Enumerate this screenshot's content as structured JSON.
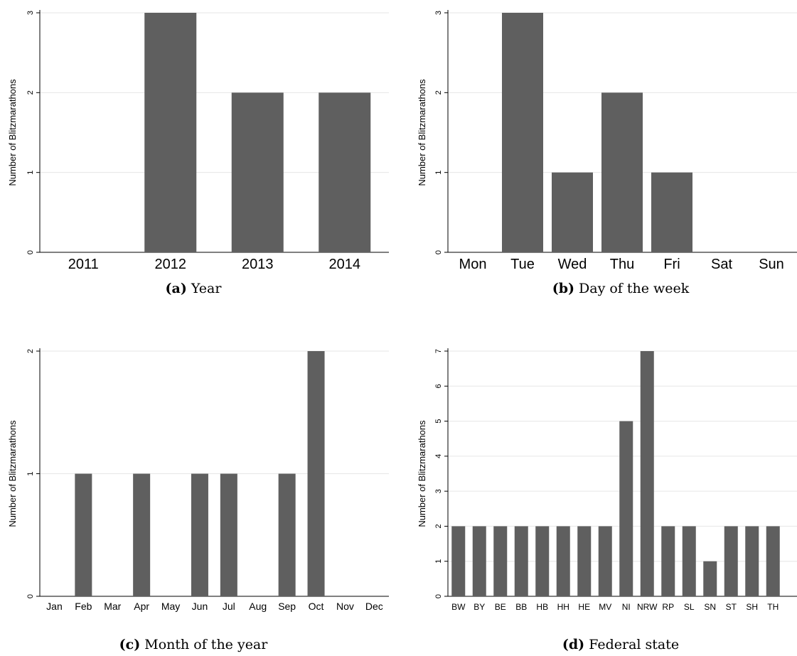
{
  "colors": {
    "bar": "#5f5f5f",
    "grid": "#e6e6e6",
    "axis": "#000000",
    "background": "#ffffff"
  },
  "chart_data": [
    {
      "type": "bar",
      "categories": [
        "2011",
        "2012",
        "2013",
        "2014"
      ],
      "values": [
        0,
        3,
        2,
        2
      ],
      "ylabel": "Number of Blitzmarathons",
      "ylim": [
        0,
        3
      ],
      "yticks": [
        "0",
        "1",
        "2",
        "3"
      ],
      "grid": true,
      "caption_letter": "(a)",
      "caption_text": "Year"
    },
    {
      "type": "bar",
      "categories": [
        "Mon",
        "Tue",
        "Wed",
        "Thu",
        "Fri",
        "Sat",
        "Sun"
      ],
      "values": [
        0,
        3,
        1,
        2,
        1,
        0,
        0
      ],
      "ylabel": "Number of Blitzmarathons",
      "ylim": [
        0,
        3
      ],
      "yticks": [
        "0",
        "1",
        "2",
        "3"
      ],
      "grid": true,
      "caption_letter": "(b)",
      "caption_text": "Day of the week"
    },
    {
      "type": "bar",
      "categories": [
        "Jan",
        "Feb",
        "Mar",
        "Apr",
        "May",
        "Jun",
        "Jul",
        "Aug",
        "Sep",
        "Oct",
        "Nov",
        "Dec"
      ],
      "values": [
        0,
        1,
        0,
        1,
        0,
        1,
        1,
        0,
        1,
        2,
        0,
        0
      ],
      "ylabel": "Number of Blitzmarathons",
      "ylim": [
        0,
        2
      ],
      "yticks": [
        "0",
        "1",
        "2"
      ],
      "grid": true,
      "caption_letter": "(c)",
      "caption_text": "Month of the year"
    },
    {
      "type": "bar",
      "categories": [
        "BW",
        "BY",
        "BE",
        "BB",
        "HB",
        "HH",
        "HE",
        "MV",
        "NI",
        "NRW",
        "RP",
        "SL",
        "SN",
        "ST",
        "SH",
        "TH"
      ],
      "values": [
        2,
        2,
        2,
        2,
        2,
        2,
        2,
        2,
        5,
        7,
        2,
        2,
        1,
        2,
        2,
        2
      ],
      "ylabel": "Number of Blitzmarathons",
      "ylim": [
        0,
        7
      ],
      "yticks": [
        "0",
        "1",
        "2",
        "3",
        "4",
        "5",
        "6",
        "7"
      ],
      "grid": true,
      "caption_letter": "(d)",
      "caption_text": "Federal state"
    }
  ]
}
